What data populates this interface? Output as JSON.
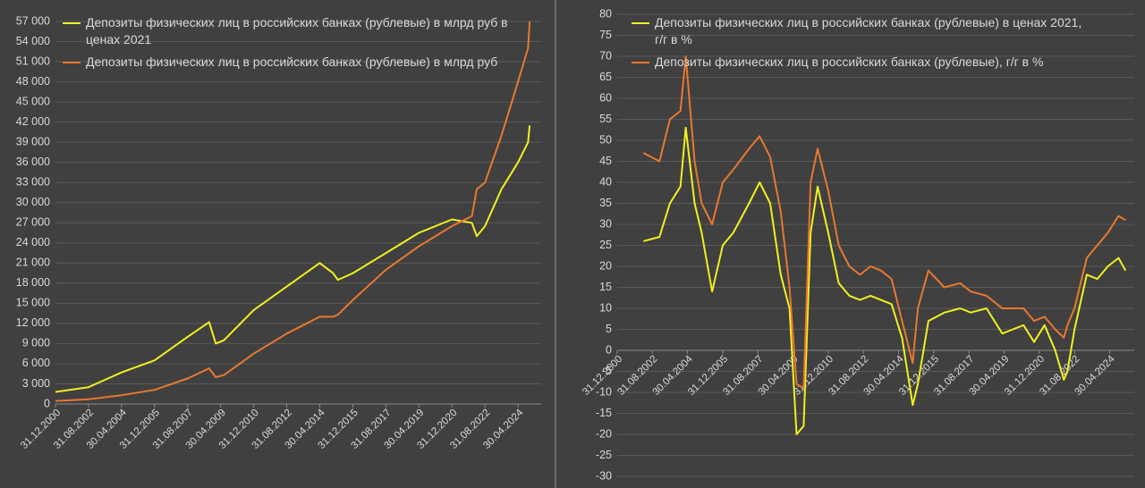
{
  "chart_data": [
    {
      "type": "line",
      "legend": "upper left",
      "grid": true,
      "x": [
        "2000-12-31",
        "2002-08-31",
        "2004-04-30",
        "2005-12-31",
        "2007-08-31",
        "2008-09-30",
        "2009-01-31",
        "2009-06-30",
        "2010-12-31",
        "2012-08-31",
        "2014-04-30",
        "2014-12-31",
        "2015-03-31",
        "2015-12-31",
        "2017-08-31",
        "2019-04-30",
        "2020-12-31",
        "2021-12-31",
        "2022-03-31",
        "2022-08-31",
        "2023-06-30",
        "2024-04-30",
        "2024-10-31",
        "2024-11-30"
      ],
      "xlim": [
        "2000-12-31",
        "2025-06-30"
      ],
      "xticks": [
        {
          "value": "2000-12-31",
          "label": "31.12.2000"
        },
        {
          "value": "2002-08-31",
          "label": "31.08.2002"
        },
        {
          "value": "2004-04-30",
          "label": "30.04.2004"
        },
        {
          "value": "2005-12-31",
          "label": "31.12.2005"
        },
        {
          "value": "2007-08-31",
          "label": "31.08.2007"
        },
        {
          "value": "2009-04-30",
          "label": "30.04.2009"
        },
        {
          "value": "2010-12-31",
          "label": "31.12.2010"
        },
        {
          "value": "2012-08-31",
          "label": "31.08.2012"
        },
        {
          "value": "2014-04-30",
          "label": "30.04.2014"
        },
        {
          "value": "2015-12-31",
          "label": "31.12.2015"
        },
        {
          "value": "2017-08-31",
          "label": "31.08.2017"
        },
        {
          "value": "2019-04-30",
          "label": "30.04.2019"
        },
        {
          "value": "2020-12-31",
          "label": "31.12.2020"
        },
        {
          "value": "2022-08-31",
          "label": "31.08.2022"
        },
        {
          "value": "2024-04-30",
          "label": "30.04.2024"
        }
      ],
      "ylim": [
        0,
        57000
      ],
      "yticks": [
        0,
        {
          "value": 3000,
          "label": "3 000"
        },
        {
          "value": 6000,
          "label": "6 000"
        },
        {
          "value": 9000,
          "label": "9 000"
        },
        {
          "value": 12000,
          "label": "12 000"
        },
        {
          "value": 15000,
          "label": "15 000"
        },
        {
          "value": 18000,
          "label": "18 000"
        },
        {
          "value": 21000,
          "label": "21 000"
        },
        {
          "value": 24000,
          "label": "24 000"
        },
        {
          "value": 27000,
          "label": "27 000"
        },
        {
          "value": 30000,
          "label": "30 000"
        },
        {
          "value": 33000,
          "label": "33 000"
        },
        {
          "value": 36000,
          "label": "36 000"
        },
        {
          "value": 39000,
          "label": "39 000"
        },
        {
          "value": 42000,
          "label": "42 000"
        },
        {
          "value": 45000,
          "label": "45 000"
        },
        {
          "value": 48000,
          "label": "48 000"
        },
        {
          "value": 51000,
          "label": "51 000"
        },
        {
          "value": 54000,
          "label": "54 000"
        },
        {
          "value": 57000,
          "label": "57 000"
        }
      ],
      "series": [
        {
          "name": "Депозиты физических лиц в российских банках (рублевые) в млрд руб в ценах 2021",
          "color": "#f0f020",
          "values": [
            1800,
            2500,
            4700,
            6500,
            10000,
            12200,
            9000,
            9500,
            14000,
            17500,
            21000,
            19500,
            18500,
            19500,
            22500,
            25500,
            27500,
            27000,
            25000,
            26500,
            32000,
            36000,
            39000,
            41500
          ]
        },
        {
          "name": "Депозиты физических лиц в российских банках (рублевые) в млрд руб",
          "color": "#e8782e",
          "values": [
            450,
            700,
            1300,
            2100,
            3800,
            5300,
            4000,
            4300,
            7500,
            10500,
            13000,
            13000,
            13300,
            15500,
            20000,
            23500,
            26500,
            28000,
            32000,
            33000,
            40000,
            48000,
            53000,
            57000
          ]
        }
      ]
    },
    {
      "type": "line",
      "legend": "upper left",
      "grid": true,
      "x": [
        "2002-03-31",
        "2002-12-31",
        "2003-06-30",
        "2003-12-31",
        "2004-03-31",
        "2004-08-31",
        "2004-12-31",
        "2005-06-30",
        "2005-12-31",
        "2006-06-30",
        "2007-03-31",
        "2007-09-30",
        "2008-03-31",
        "2008-09-30",
        "2009-02-28",
        "2009-06-30",
        "2009-10-31",
        "2010-02-28",
        "2010-06-30",
        "2010-12-31",
        "2011-06-30",
        "2011-12-31",
        "2012-06-30",
        "2012-12-31",
        "2013-06-30",
        "2013-12-31",
        "2014-06-30",
        "2014-12-31",
        "2015-03-31",
        "2015-09-30",
        "2016-06-30",
        "2017-03-31",
        "2017-09-30",
        "2018-06-30",
        "2019-03-31",
        "2019-09-30",
        "2020-03-31",
        "2020-09-30",
        "2021-03-31",
        "2021-09-30",
        "2022-02-28",
        "2022-04-30",
        "2022-08-31",
        "2023-03-31",
        "2023-09-30",
        "2024-03-31",
        "2024-09-30",
        "2025-01-31"
      ],
      "xlim": [
        "2000-12-31",
        "2025-06-30"
      ],
      "xticks": [
        {
          "value": "2000-12-31",
          "label": "31.12.2000"
        },
        {
          "value": "2002-08-31",
          "label": "31.08.2002"
        },
        {
          "value": "2004-04-30",
          "label": "30.04.2004"
        },
        {
          "value": "2005-12-31",
          "label": "31.12.2005"
        },
        {
          "value": "2007-08-31",
          "label": "31.08.2007"
        },
        {
          "value": "2009-04-30",
          "label": "30.04.2009"
        },
        {
          "value": "2010-12-31",
          "label": "31.12.2010"
        },
        {
          "value": "2012-08-31",
          "label": "31.08.2012"
        },
        {
          "value": "2014-04-30",
          "label": "30.04.2014"
        },
        {
          "value": "2015-12-31",
          "label": "31.12.2015"
        },
        {
          "value": "2017-08-31",
          "label": "31.08.2017"
        },
        {
          "value": "2019-04-30",
          "label": "30.04.2019"
        },
        {
          "value": "2020-12-31",
          "label": "31.12.2020"
        },
        {
          "value": "2022-08-31",
          "label": "31.08.2022"
        },
        {
          "value": "2024-04-30",
          "label": "30.04.2024"
        }
      ],
      "ylim": [
        -30,
        80
      ],
      "yticks": [
        -30,
        -25,
        -20,
        -15,
        -10,
        -5,
        0,
        5,
        10,
        15,
        20,
        25,
        30,
        35,
        40,
        45,
        50,
        55,
        60,
        65,
        70,
        75,
        80
      ],
      "series": [
        {
          "name": "Депозиты физических лиц в российских банках (рублевые) в ценах 2021, г/г в %",
          "color": "#f0f020",
          "values": [
            26,
            27,
            35,
            39,
            53,
            35,
            28,
            14,
            25,
            28,
            35,
            40,
            35,
            18,
            10,
            -20,
            -18,
            28,
            39,
            28,
            16,
            13,
            12,
            13,
            12,
            11,
            3,
            -13,
            -8,
            7,
            9,
            10,
            9,
            10,
            4,
            5,
            6,
            2,
            6,
            0,
            -7,
            -5,
            5,
            18,
            17,
            20,
            22,
            19
          ]
        },
        {
          "name": "Депозиты физических лиц в российских банках (рублевые), г/г в %",
          "color": "#e8782e",
          "values": [
            47,
            45,
            55,
            57,
            70,
            45,
            35,
            30,
            40,
            43,
            48,
            51,
            46,
            33,
            15,
            -8,
            -9,
            40,
            48,
            38,
            25,
            20,
            18,
            20,
            19,
            17,
            7,
            -3,
            10,
            19,
            15,
            16,
            14,
            13,
            10,
            10,
            10,
            7,
            8,
            5,
            3,
            6,
            10,
            22,
            25,
            28,
            32,
            31
          ]
        }
      ]
    }
  ]
}
